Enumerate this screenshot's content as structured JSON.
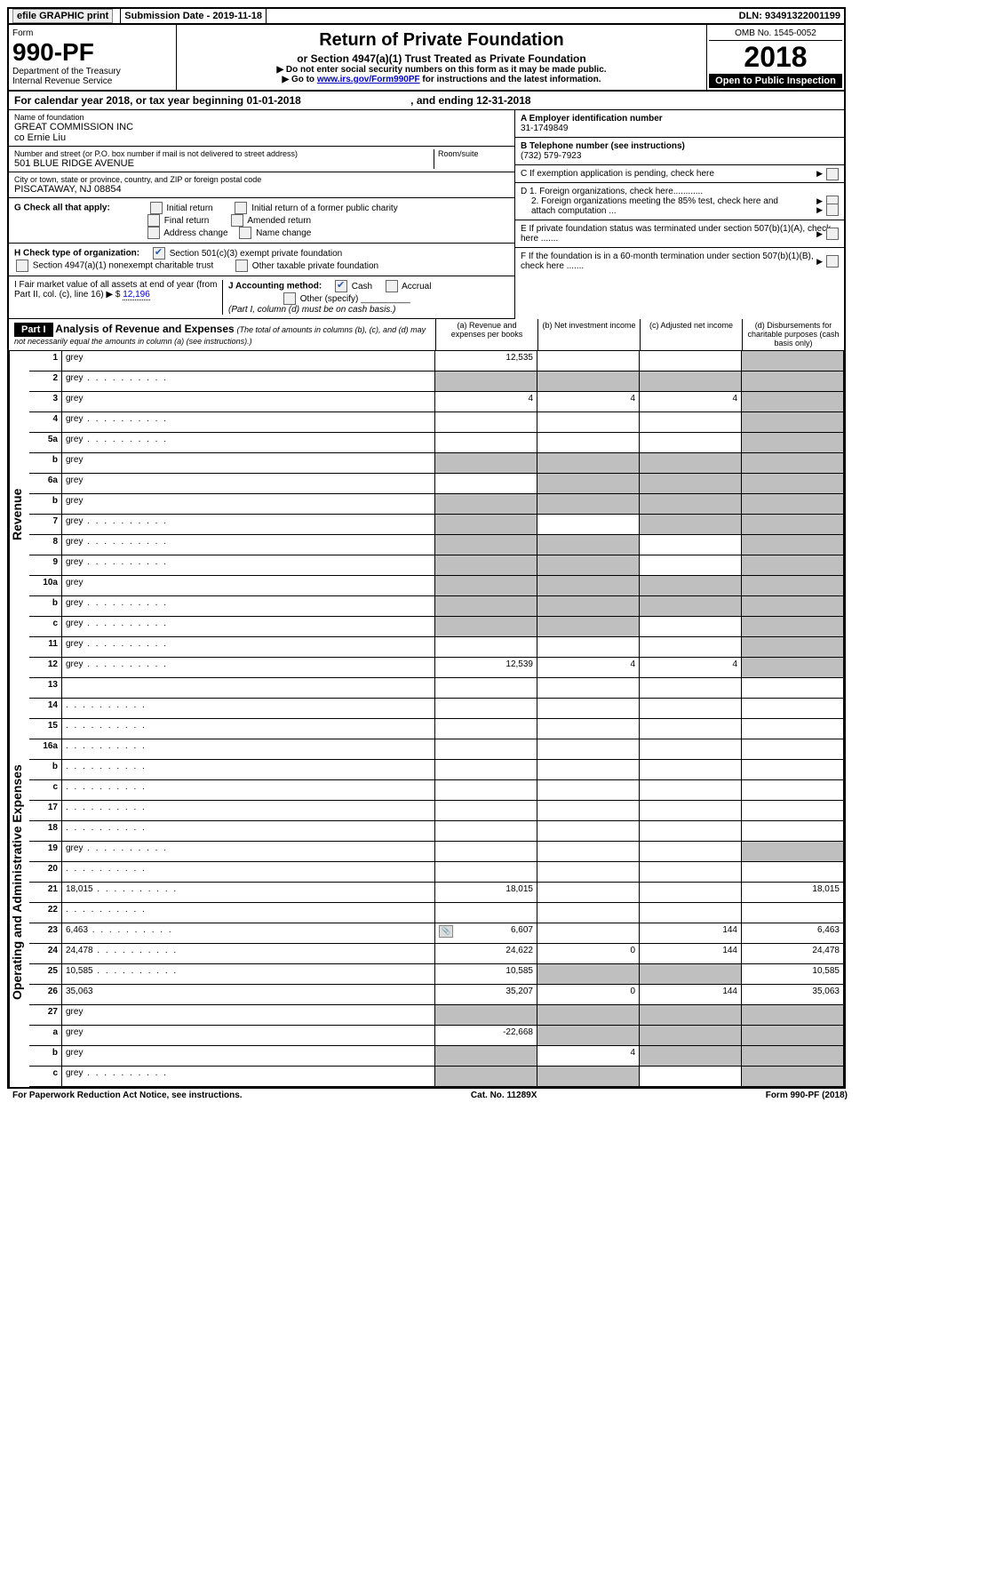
{
  "top": {
    "efile": "efile GRAPHIC print",
    "sub_date_lbl": "Submission Date - 2019-11-18",
    "dln": "DLN: 93491322001199"
  },
  "header": {
    "form_lbl": "Form",
    "form_num": "990-PF",
    "dept": "Department of the Treasury\nInternal Revenue Service",
    "title": "Return of Private Foundation",
    "subtitle": "or Section 4947(a)(1) Trust Treated as Private Foundation",
    "note1": "▶ Do not enter social security numbers on this form as it may be made public.",
    "note2_pre": "▶ Go to ",
    "link": "www.irs.gov/Form990PF",
    "note2_post": " for instructions and the latest information.",
    "omb": "OMB No. 1545-0052",
    "year": "2018",
    "inspect": "Open to Public Inspection"
  },
  "cal": {
    "text": "For calendar year 2018, or tax year beginning 01-01-2018",
    "end": ", and ending 12-31-2018"
  },
  "info": {
    "name_lbl": "Name of foundation",
    "name": "GREAT COMMISSION INC\nco Ernie Liu",
    "addr_lbl": "Number and street (or P.O. box number if mail is not delivered to street address)",
    "addr": "501 BLUE RIDGE AVENUE",
    "room_lbl": "Room/suite",
    "city_lbl": "City or town, state or province, country, and ZIP or foreign postal code",
    "city": "PISCATAWAY, NJ  08854",
    "g_lbl": "G Check all that apply:",
    "g_items": [
      "Initial return",
      "Initial return of a former public charity",
      "Final return",
      "Amended return",
      "Address change",
      "Name change"
    ],
    "h_lbl": "H Check type of organization:",
    "h1": "Section 501(c)(3) exempt private foundation",
    "h2": "Section 4947(a)(1) nonexempt charitable trust",
    "h3": "Other taxable private foundation",
    "i_lbl": "I Fair market value of all assets at end of year (from Part II, col. (c), line 16) ▶ $",
    "i_val": "12,196",
    "j_lbl": "J Accounting method:",
    "j_cash": "Cash",
    "j_acc": "Accrual",
    "j_other": "Other (specify)",
    "j_note": "(Part I, column (d) must be on cash basis.)"
  },
  "right": {
    "a_lbl": "A Employer identification number",
    "a_val": "31-1749849",
    "b_lbl": "B Telephone number (see instructions)",
    "b_val": "(732) 579-7923",
    "c_lbl": "C If exemption application is pending, check here",
    "d1_lbl": "D 1. Foreign organizations, check here............",
    "d2_lbl": "2. Foreign organizations meeting the 85% test, check here and attach computation ...",
    "e_lbl": "E If private foundation status was terminated under section 507(b)(1)(A), check here .......",
    "f_lbl": "F If the foundation is in a 60-month termination under section 507(b)(1)(B), check here ......."
  },
  "part1": {
    "label": "Part I",
    "title": "Analysis of Revenue and Expenses",
    "note": "(The total of amounts in columns (b), (c), and (d) may not necessarily equal the amounts in column (a) (see instructions).)",
    "cols": {
      "a": "(a) Revenue and expenses per books",
      "b": "(b) Net investment income",
      "c": "(c) Adjusted net income",
      "d": "(d) Disbursements for charitable purposes (cash basis only)"
    }
  },
  "sections": {
    "revenue": "Revenue",
    "expenses": "Operating and Administrative Expenses"
  },
  "rows": [
    {
      "n": "1",
      "d": "grey",
      "a": "12,535",
      "b": "",
      "c": ""
    },
    {
      "n": "2",
      "d": "grey",
      "a": "grey",
      "b": "grey",
      "c": "grey",
      "dots": true
    },
    {
      "n": "3",
      "d": "grey",
      "a": "4",
      "b": "4",
      "c": "4"
    },
    {
      "n": "4",
      "d": "grey",
      "a": "",
      "b": "",
      "c": "",
      "dots": true
    },
    {
      "n": "5a",
      "d": "grey",
      "a": "",
      "b": "",
      "c": "",
      "dots": true
    },
    {
      "n": "b",
      "d": "grey",
      "a": "grey",
      "b": "grey",
      "c": "grey"
    },
    {
      "n": "6a",
      "d": "grey",
      "a": "",
      "b": "grey",
      "c": "grey"
    },
    {
      "n": "b",
      "d": "grey",
      "a": "grey",
      "b": "grey",
      "c": "grey"
    },
    {
      "n": "7",
      "d": "grey",
      "a": "grey",
      "b": "",
      "c": "grey",
      "dots": true
    },
    {
      "n": "8",
      "d": "grey",
      "a": "grey",
      "b": "grey",
      "c": "",
      "dots": true
    },
    {
      "n": "9",
      "d": "grey",
      "a": "grey",
      "b": "grey",
      "c": "",
      "dots": true
    },
    {
      "n": "10a",
      "d": "grey",
      "a": "grey",
      "b": "grey",
      "c": "grey"
    },
    {
      "n": "b",
      "d": "grey",
      "a": "grey",
      "b": "grey",
      "c": "grey",
      "dots": true
    },
    {
      "n": "c",
      "d": "grey",
      "a": "grey",
      "b": "grey",
      "c": "",
      "dots": true
    },
    {
      "n": "11",
      "d": "grey",
      "a": "",
      "b": "",
      "c": "",
      "dots": true
    },
    {
      "n": "12",
      "d": "grey",
      "a": "12,539",
      "b": "4",
      "c": "4",
      "dots": true
    }
  ],
  "rows2": [
    {
      "n": "13",
      "d": "",
      "a": "",
      "b": "",
      "c": ""
    },
    {
      "n": "14",
      "d": "",
      "a": "",
      "b": "",
      "c": "",
      "dots": true
    },
    {
      "n": "15",
      "d": "",
      "a": "",
      "b": "",
      "c": "",
      "dots": true
    },
    {
      "n": "16a",
      "d": "",
      "a": "",
      "b": "",
      "c": "",
      "dots": true
    },
    {
      "n": "b",
      "d": "",
      "a": "",
      "b": "",
      "c": "",
      "dots": true
    },
    {
      "n": "c",
      "d": "",
      "a": "",
      "b": "",
      "c": "",
      "dots": true
    },
    {
      "n": "17",
      "d": "",
      "a": "",
      "b": "",
      "c": "",
      "dots": true
    },
    {
      "n": "18",
      "d": "",
      "a": "",
      "b": "",
      "c": "",
      "dots": true
    },
    {
      "n": "19",
      "d": "grey",
      "a": "",
      "b": "",
      "c": "",
      "dots": true
    },
    {
      "n": "20",
      "d": "",
      "a": "",
      "b": "",
      "c": "",
      "dots": true
    },
    {
      "n": "21",
      "d": "18,015",
      "a": "18,015",
      "b": "",
      "c": "",
      "dots": true
    },
    {
      "n": "22",
      "d": "",
      "a": "",
      "b": "",
      "c": "",
      "dots": true
    },
    {
      "n": "23",
      "d": "6,463",
      "a": "6,607",
      "b": "",
      "c": "144",
      "dots": true,
      "attach": true
    },
    {
      "n": "24",
      "d": "24,478",
      "a": "24,622",
      "b": "0",
      "c": "144",
      "dots": true
    },
    {
      "n": "25",
      "d": "10,585",
      "a": "10,585",
      "b": "grey",
      "c": "grey",
      "dots": true
    },
    {
      "n": "26",
      "d": "35,063",
      "a": "35,207",
      "b": "0",
      "c": "144"
    },
    {
      "n": "27",
      "d": "grey",
      "a": "grey",
      "b": "grey",
      "c": "grey"
    },
    {
      "n": "a",
      "d": "grey",
      "a": "-22,668",
      "b": "grey",
      "c": "grey"
    },
    {
      "n": "b",
      "d": "grey",
      "a": "grey",
      "b": "4",
      "c": "grey"
    },
    {
      "n": "c",
      "d": "grey",
      "a": "grey",
      "b": "grey",
      "c": "",
      "dots": true
    }
  ],
  "footer": {
    "left": "For Paperwork Reduction Act Notice, see instructions.",
    "mid": "Cat. No. 11289X",
    "right": "Form 990-PF (2018)"
  }
}
